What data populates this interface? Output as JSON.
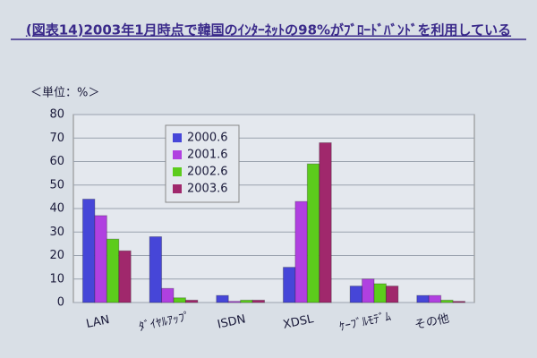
{
  "chart_data": {
    "type": "bar",
    "title": "(図表14)2003年1月時点で韓国のｲﾝﾀｰﾈｯﾄの98%がﾌﾞﾛｰﾄﾞﾊﾞﾝﾄﾞを利用している",
    "y_label": "＜単位：%＞",
    "categories": [
      "LAN",
      "ﾀﾞｲﾔﾙｱｯﾌﾟ",
      "ISDN",
      "XDSL",
      "ｹｰﾌﾞﾙﾓﾃﾞﾑ",
      "その他"
    ],
    "series": [
      {
        "name": "2000.6",
        "color": "#4646d8",
        "values": [
          44,
          28,
          3,
          15,
          7,
          3
        ]
      },
      {
        "name": "2001.6",
        "color": "#b040e0",
        "values": [
          37,
          6,
          0.5,
          43,
          10,
          3
        ]
      },
      {
        "name": "2002.6",
        "color": "#5ccc1c",
        "values": [
          27,
          2,
          1,
          59,
          8,
          1
        ]
      },
      {
        "name": "2003.6",
        "color": "#a0286c",
        "values": [
          22,
          1,
          1,
          68,
          7,
          0.5
        ]
      }
    ],
    "ylim": [
      0,
      80
    ],
    "yticks": [
      0,
      10,
      20,
      30,
      40,
      50,
      60,
      70,
      80
    ],
    "grid": true,
    "legend": "top-left"
  }
}
